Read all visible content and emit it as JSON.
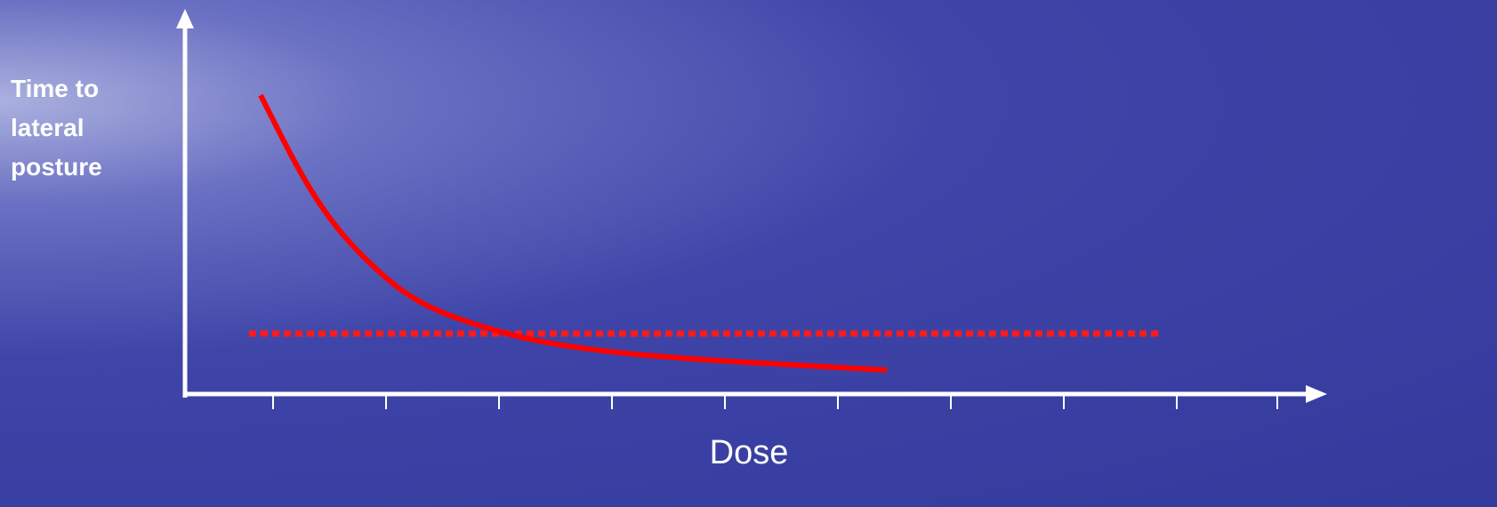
{
  "axes": {
    "y_label": "Time to lateral posture",
    "x_label": "Dose"
  }
}
